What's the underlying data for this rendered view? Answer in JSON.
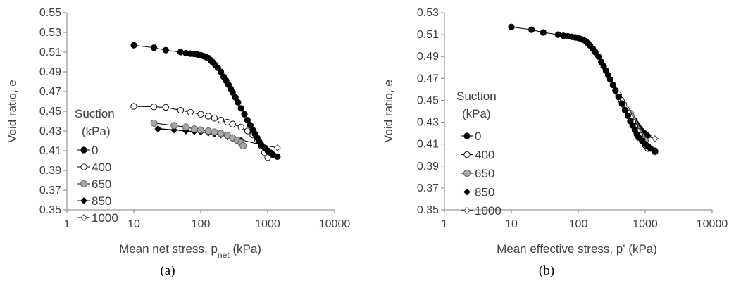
{
  "chart_data": [
    {
      "type": "line",
      "panel_label": "(a)",
      "xlabel_main": "Mean net stress, p",
      "xlabel_sub": "net",
      "xlabel_tail": " (kPa)",
      "ylabel": "Void ratio, e",
      "x_scale": "log",
      "xlim": [
        1,
        10000
      ],
      "ylim": [
        0.35,
        0.55
      ],
      "x_ticks": [
        "1",
        "10",
        "100",
        "1000",
        "10000"
      ],
      "y_ticks": [
        "0.35",
        "0.37",
        "0.39",
        "0.41",
        "0.43",
        "0.45",
        "0.47",
        "0.49",
        "0.51",
        "0.53",
        "0.55"
      ],
      "grid": false,
      "legend": {
        "title": [
          "Suction",
          "(kPa)"
        ],
        "placement": "left"
      },
      "series": [
        {
          "name": "0",
          "marker": "filled-circle",
          "color": "#000000",
          "points": [
            [
              10,
              0.517
            ],
            [
              20,
              0.5145
            ],
            [
              30,
              0.512
            ],
            [
              50,
              0.51
            ],
            [
              60,
              0.509
            ],
            [
              70,
              0.5085
            ],
            [
              80,
              0.508
            ],
            [
              90,
              0.5075
            ],
            [
              100,
              0.507
            ],
            [
              110,
              0.506
            ],
            [
              120,
              0.505
            ],
            [
              130,
              0.504
            ],
            [
              140,
              0.502
            ],
            [
              150,
              0.5
            ],
            [
              165,
              0.497
            ],
            [
              180,
              0.494
            ],
            [
              200,
              0.49
            ],
            [
              220,
              0.485
            ],
            [
              240,
              0.481
            ],
            [
              260,
              0.477
            ],
            [
              280,
              0.473
            ],
            [
              300,
              0.469
            ],
            [
              330,
              0.464
            ],
            [
              360,
              0.459
            ],
            [
              400,
              0.453
            ],
            [
              450,
              0.447
            ],
            [
              500,
              0.441
            ],
            [
              550,
              0.436
            ],
            [
              600,
              0.431
            ],
            [
              650,
              0.427
            ],
            [
              700,
              0.423
            ],
            [
              750,
              0.419
            ],
            [
              800,
              0.416
            ],
            [
              900,
              0.413
            ],
            [
              1000,
              0.41
            ],
            [
              1100,
              0.408
            ],
            [
              1200,
              0.406
            ],
            [
              1400,
              0.404
            ]
          ]
        },
        {
          "name": "400",
          "marker": "open-circle",
          "color": "#000000",
          "points": [
            [
              10,
              0.455
            ],
            [
              20,
              0.4545
            ],
            [
              30,
              0.454
            ],
            [
              50,
              0.451
            ],
            [
              70,
              0.449
            ],
            [
              100,
              0.447
            ],
            [
              130,
              0.445
            ],
            [
              160,
              0.443
            ],
            [
              200,
              0.441
            ],
            [
              250,
              0.439
            ],
            [
              300,
              0.437
            ],
            [
              400,
              0.434
            ],
            [
              500,
              0.43
            ],
            [
              600,
              0.426
            ],
            [
              700,
              0.421
            ],
            [
              800,
              0.415
            ],
            [
              900,
              0.408
            ],
            [
              1000,
              0.403
            ]
          ]
        },
        {
          "name": "650",
          "marker": "gray-circle",
          "color": "#a6a6a6",
          "points": [
            [
              20,
              0.438
            ],
            [
              40,
              0.4355
            ],
            [
              60,
              0.434
            ],
            [
              80,
              0.432
            ],
            [
              100,
              0.431
            ],
            [
              130,
              0.43
            ],
            [
              160,
              0.429
            ],
            [
              200,
              0.4275
            ],
            [
              250,
              0.4255
            ],
            [
              300,
              0.423
            ],
            [
              350,
              0.4205
            ],
            [
              400,
              0.418
            ],
            [
              430,
              0.415
            ]
          ]
        },
        {
          "name": "850",
          "marker": "filled-diamond",
          "color": "#000000",
          "points": [
            [
              23,
              0.432
            ],
            [
              40,
              0.431
            ],
            [
              60,
              0.43
            ],
            [
              80,
              0.4295
            ],
            [
              100,
              0.429
            ],
            [
              130,
              0.428
            ],
            [
              160,
              0.427
            ],
            [
              200,
              0.426
            ],
            [
              250,
              0.424
            ],
            [
              300,
              0.422
            ],
            [
              350,
              0.421
            ],
            [
              400,
              0.42
            ]
          ]
        },
        {
          "name": "1000",
          "marker": "open-diamond",
          "color": "#000000",
          "points": [
            [
              23,
              0.4325
            ],
            [
              200,
              0.4272
            ],
            [
              300,
              0.4235
            ],
            [
              400,
              0.421
            ],
            [
              800,
              0.416
            ],
            [
              1400,
              0.413
            ]
          ]
        }
      ]
    },
    {
      "type": "line",
      "panel_label": "(b)",
      "xlabel_main": "Mean effective stress, p' (kPa)",
      "ylabel": "Void ratio, e",
      "x_scale": "log",
      "xlim": [
        1,
        10000
      ],
      "ylim": [
        0.35,
        0.53
      ],
      "x_ticks": [
        "1",
        "10",
        "100",
        "1000",
        "10000"
      ],
      "y_ticks": [
        "0.35",
        "0.37",
        "0.39",
        "0.41",
        "0.43",
        "0.45",
        "0.47",
        "0.49",
        "0.51",
        "0.53"
      ],
      "grid": false,
      "legend": {
        "title": [
          "Suction",
          "(kPa)"
        ],
        "placement": "left"
      },
      "series": [
        {
          "name": "0",
          "marker": "filled-circle",
          "color": "#000000",
          "points": [
            [
              10,
              0.517
            ],
            [
              20,
              0.5145
            ],
            [
              30,
              0.512
            ],
            [
              50,
              0.51
            ],
            [
              60,
              0.509
            ],
            [
              70,
              0.5085
            ],
            [
              80,
              0.508
            ],
            [
              90,
              0.5075
            ],
            [
              100,
              0.507
            ],
            [
              110,
              0.506
            ],
            [
              120,
              0.505
            ],
            [
              130,
              0.504
            ],
            [
              140,
              0.502
            ],
            [
              150,
              0.5
            ],
            [
              165,
              0.497
            ],
            [
              180,
              0.494
            ],
            [
              200,
              0.49
            ],
            [
              220,
              0.485
            ],
            [
              240,
              0.481
            ],
            [
              260,
              0.477
            ],
            [
              280,
              0.473
            ],
            [
              300,
              0.469
            ],
            [
              330,
              0.464
            ],
            [
              360,
              0.459
            ],
            [
              400,
              0.453
            ],
            [
              450,
              0.447
            ],
            [
              500,
              0.441
            ],
            [
              550,
              0.436
            ],
            [
              600,
              0.431
            ],
            [
              650,
              0.427
            ],
            [
              700,
              0.423
            ],
            [
              750,
              0.419
            ],
            [
              800,
              0.416
            ],
            [
              900,
              0.413
            ],
            [
              1000,
              0.41
            ],
            [
              1100,
              0.408
            ],
            [
              1200,
              0.406
            ],
            [
              1400,
              0.404
            ]
          ]
        },
        {
          "name": "400",
          "marker": "open-circle",
          "color": "#000000",
          "points": [
            [
              400,
              0.455
            ],
            [
              440,
              0.45
            ],
            [
              480,
              0.446
            ],
            [
              520,
              0.442
            ],
            [
              560,
              0.438
            ],
            [
              600,
              0.434
            ],
            [
              650,
              0.43
            ],
            [
              700,
              0.426
            ],
            [
              760,
              0.422
            ],
            [
              830,
              0.418
            ],
            [
              900,
              0.414
            ],
            [
              1000,
              0.409
            ],
            [
              1100,
              0.406
            ],
            [
              1400,
              0.403
            ]
          ]
        },
        {
          "name": "650",
          "marker": "gray-circle",
          "color": "#a6a6a6",
          "points": [
            [
              600,
              0.438
            ],
            [
              620,
              0.435
            ],
            [
              650,
              0.432
            ],
            [
              680,
              0.429
            ],
            [
              720,
              0.426
            ],
            [
              760,
              0.423
            ],
            [
              800,
              0.421
            ],
            [
              850,
              0.418
            ],
            [
              900,
              0.416
            ],
            [
              950,
              0.414
            ],
            [
              1000,
              0.413
            ]
          ]
        },
        {
          "name": "850",
          "marker": "filled-diamond",
          "color": "#000000",
          "points": [
            [
              700,
              0.432
            ],
            [
              720,
              0.43
            ],
            [
              760,
              0.428
            ],
            [
              800,
              0.426
            ],
            [
              850,
              0.424
            ],
            [
              900,
              0.422
            ],
            [
              950,
              0.421
            ],
            [
              1000,
              0.42
            ],
            [
              1100,
              0.418
            ]
          ]
        },
        {
          "name": "1000",
          "marker": "open-diamond",
          "color": "#000000",
          "points": [
            [
              650,
              0.433
            ],
            [
              700,
              0.43
            ],
            [
              750,
              0.427
            ],
            [
              800,
              0.425
            ],
            [
              850,
              0.423
            ],
            [
              900,
              0.421
            ],
            [
              1000,
              0.419
            ],
            [
              1100,
              0.417
            ],
            [
              1400,
              0.415
            ]
          ]
        }
      ]
    }
  ]
}
